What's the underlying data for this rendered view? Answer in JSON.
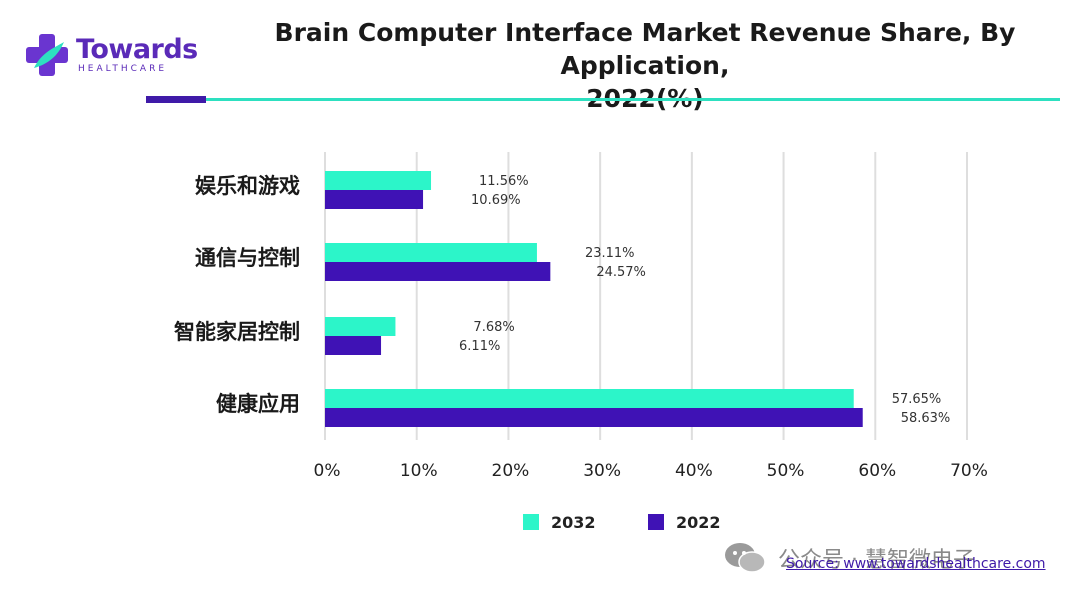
{
  "brand": {
    "name": "Towards",
    "sub": "HEALTHCARE"
  },
  "chart_data": {
    "type": "bar",
    "orientation": "horizontal",
    "title": "Brain Computer Interface Market Revenue Share, By Application, 2022(%)",
    "title_line1": "Brain Computer Interface Market Revenue Share, By Application,",
    "title_line2": "2022(%)",
    "categories": [
      "娱乐和游戏",
      "通信与控制",
      "智能家居控制",
      "健康应用"
    ],
    "series": [
      {
        "name": "2032",
        "color": "#2cf5c9",
        "values": [
          11.56,
          23.11,
          7.68,
          57.65
        ],
        "labels": [
          "11.56%",
          "23.11%",
          "7.68%",
          "57.65%"
        ]
      },
      {
        "name": "2022",
        "color": "#3f12b5",
        "values": [
          10.69,
          24.57,
          6.11,
          58.63
        ],
        "labels": [
          "10.69%",
          "24.57%",
          "6.11%",
          "58.63%"
        ]
      }
    ],
    "xlim": [
      0,
      70
    ],
    "ticks": [
      0,
      10,
      20,
      30,
      40,
      50,
      60,
      70
    ],
    "tick_labels": [
      "0%",
      "10%",
      "20%",
      "30%",
      "40%",
      "50%",
      "60%",
      "70%"
    ],
    "grid": true,
    "legend": "bottom-center"
  },
  "footer": {
    "watermark": "公众号 · 慧智微电子",
    "source": "Source: www.towardshealthcare.com"
  }
}
